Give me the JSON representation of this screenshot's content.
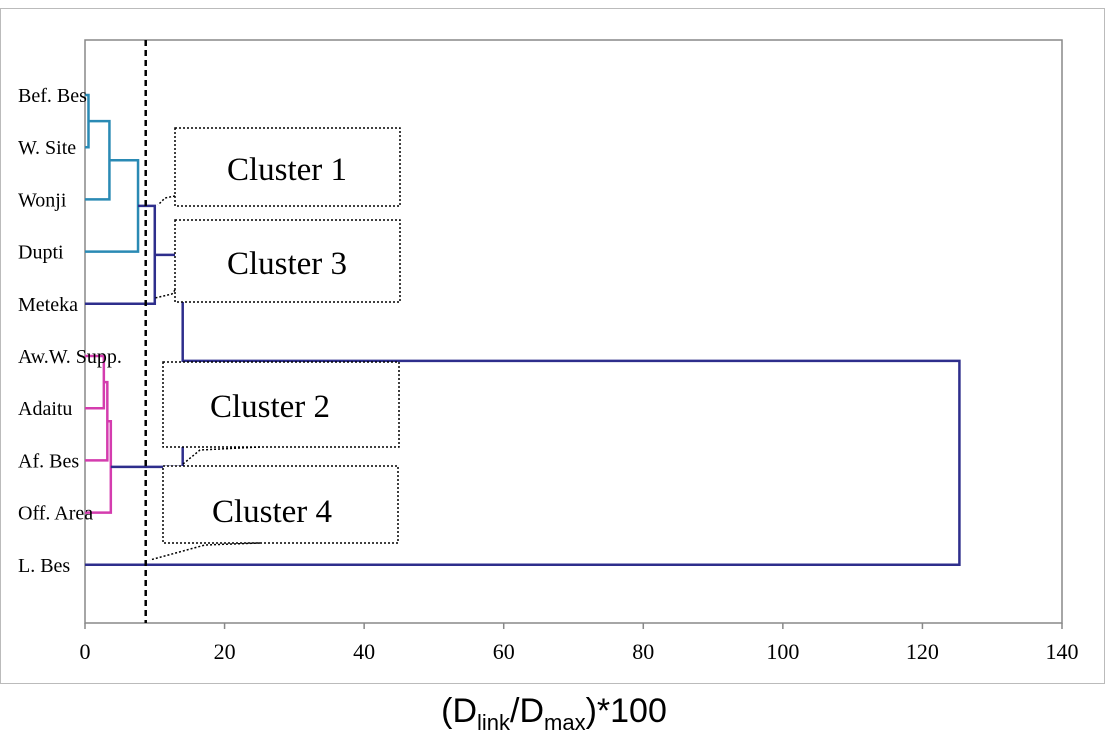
{
  "chart_data": {
    "type": "dendrogram",
    "leaves": [
      "Bef. Bes",
      "W. Site",
      "Wonji",
      "Dupti",
      "Meteka",
      "Aw.W. Supp.",
      "Adaitu",
      "Af. Bes",
      "Off. Area",
      "L. Bes"
    ],
    "merges": [
      {
        "children": [
          0,
          1
        ],
        "height": 0.5,
        "color": "#2a8ab4"
      },
      {
        "children": [
          10,
          2
        ],
        "height": 3.5,
        "color": "#2a8ab4"
      },
      {
        "children": [
          11,
          3
        ],
        "height": 7.6,
        "color": "#2a8ab4"
      },
      {
        "children": [
          12,
          4
        ],
        "height": 10,
        "color": "#2e2e8c"
      },
      {
        "children": [
          5,
          6
        ],
        "height": 2.7,
        "color": "#d43cae"
      },
      {
        "children": [
          14,
          7
        ],
        "height": 3.2,
        "color": "#d43cae"
      },
      {
        "children": [
          15,
          8
        ],
        "height": 3.7,
        "color": "#d43cae"
      },
      {
        "children": [
          13,
          16
        ],
        "height": 14,
        "color": "#2e2e8c"
      },
      {
        "children": [
          17,
          9
        ],
        "height": 125.3,
        "color": "#2e2e8c"
      }
    ],
    "cut": 8.7,
    "xlim": [
      0,
      140
    ],
    "xticks": [
      0,
      20,
      40,
      60,
      80,
      100,
      120,
      140
    ],
    "x_label": [
      "(D",
      "link",
      "/D",
      "max",
      ")*100"
    ],
    "annotations": [
      "Cluster 1",
      "Cluster 3",
      "Cluster 2",
      "Cluster 4"
    ]
  }
}
